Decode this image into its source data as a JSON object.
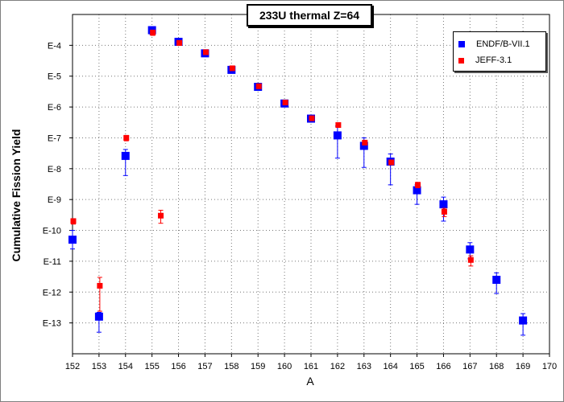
{
  "chart_data": {
    "type": "scatter",
    "title": "233U thermal Z=64",
    "xlabel": "A",
    "ylabel": "Cumulative Fission Yield",
    "xlim": [
      152,
      170
    ],
    "ylim": [
      1e-14,
      0.001
    ],
    "y_scale": "log",
    "grid": true,
    "legend_position": "top-right",
    "x_ticks": [
      "152",
      "153",
      "154",
      "155",
      "156",
      "157",
      "158",
      "159",
      "160",
      "161",
      "162",
      "163",
      "164",
      "165",
      "166",
      "167",
      "168",
      "169",
      "170"
    ],
    "y_ticks": [
      {
        "label": "E-4",
        "value": 0.0001
      },
      {
        "label": "E-5",
        "value": 1e-05
      },
      {
        "label": "E-6",
        "value": 1e-06
      },
      {
        "label": "E-7",
        "value": 1e-07
      },
      {
        "label": "E-8",
        "value": 1e-08
      },
      {
        "label": "E-9",
        "value": 1e-09
      },
      {
        "label": "E-10",
        "value": 1e-10
      },
      {
        "label": "E-11",
        "value": 1e-11
      },
      {
        "label": "E-12",
        "value": 1e-12
      },
      {
        "label": "E-13",
        "value": 1e-13
      }
    ],
    "series": [
      {
        "name": "ENDF/B-VII.1",
        "color": "#0000ff",
        "marker": "square",
        "points": [
          {
            "x": 152,
            "y": 5e-11,
            "lo": 2.5e-11,
            "hi": 1e-10
          },
          {
            "x": 153,
            "y": 1.6e-13,
            "lo": 5e-14,
            "hi": 2.2e-13
          },
          {
            "x": 154,
            "y": 2.6e-08,
            "lo": 6e-09,
            "hi": 4.2e-08
          },
          {
            "x": 155,
            "y": 0.00031,
            "lo": 0.00022,
            "hi": 0.00036
          },
          {
            "x": 156,
            "y": 0.00013,
            "lo": 0.00011,
            "hi": 0.00015
          },
          {
            "x": 157,
            "y": 5.5e-05,
            "lo": 4.5e-05,
            "hi": 6e-05
          },
          {
            "x": 158,
            "y": 1.6e-05,
            "lo": 1.3e-05,
            "hi": 1.8e-05
          },
          {
            "x": 159,
            "y": 4.5e-06,
            "lo": 4e-06,
            "hi": 5e-06
          },
          {
            "x": 160,
            "y": 1.3e-06,
            "lo": 1.1e-06,
            "hi": 1.5e-06
          },
          {
            "x": 161,
            "y": 4.2e-07,
            "lo": 3.8e-07,
            "hi": 4.6e-07
          },
          {
            "x": 162,
            "y": 1.2e-07,
            "lo": 2.2e-08,
            "hi": 2.4e-07
          },
          {
            "x": 163,
            "y": 5.5e-08,
            "lo": 1.1e-08,
            "hi": 1e-07
          },
          {
            "x": 164,
            "y": 1.7e-08,
            "lo": 3e-09,
            "hi": 3e-08
          },
          {
            "x": 165,
            "y": 2e-09,
            "lo": 7e-10,
            "hi": 3e-09
          },
          {
            "x": 166,
            "y": 7e-10,
            "lo": 2e-10,
            "hi": 1.2e-09
          },
          {
            "x": 167,
            "y": 2.4e-11,
            "lo": 1.2e-11,
            "hi": 4e-11
          },
          {
            "x": 168,
            "y": 2.5e-12,
            "lo": 9e-13,
            "hi": 4.2e-12
          },
          {
            "x": 169,
            "y": 1.2e-13,
            "lo": 4e-14,
            "hi": 2e-13
          }
        ]
      },
      {
        "name": "JEFF-3.1",
        "color": "#ff0000",
        "marker": "square",
        "points": [
          {
            "x": 152,
            "y": 2e-10,
            "lo": 1.6e-10,
            "hi": 2.4e-10
          },
          {
            "x": 153,
            "y": 1.6e-12,
            "lo": 2.4e-13,
            "hi": 3e-12
          },
          {
            "x": 154,
            "y": 1e-07,
            "lo": 8e-08,
            "hi": 1.2e-07
          },
          {
            "x": 155,
            "y": 0.00026,
            "lo": 0.00021,
            "hi": 0.00031
          },
          {
            "x": 156,
            "y": 0.00012,
            "lo": 0.0001,
            "hi": 0.00014
          },
          {
            "x": 157,
            "y": 6e-05,
            "lo": 5e-05,
            "hi": 6.8e-05
          },
          {
            "x": 158,
            "y": 1.8e-05,
            "lo": 1.6e-05,
            "hi": 2e-05
          },
          {
            "x": 159,
            "y": 4.7e-06,
            "lo": 4.3e-06,
            "hi": 5.1e-06
          },
          {
            "x": 160,
            "y": 1.4e-06,
            "lo": 1.2e-06,
            "hi": 1.6e-06
          },
          {
            "x": 161,
            "y": 4.3e-07,
            "lo": 3.9e-07,
            "hi": 4.7e-07
          },
          {
            "x": 162,
            "y": 2.6e-07,
            "lo": 2.4e-07,
            "hi": 2.8e-07
          },
          {
            "x": 163,
            "y": 7e-08,
            "lo": 6.3e-08,
            "hi": 7.7e-08
          },
          {
            "x": 164,
            "y": 1.6e-08,
            "lo": 1.4e-08,
            "hi": 1.8e-08
          },
          {
            "x": 165,
            "y": 3e-09,
            "lo": 2.4e-09,
            "hi": 3.6e-09
          },
          {
            "x": 166,
            "y": 4e-10,
            "lo": 2.8e-10,
            "hi": 5.2e-10
          },
          {
            "x": 167,
            "y": 1.1e-11,
            "lo": 7e-12,
            "hi": 1.5e-11
          }
        ]
      },
      {
        "name": "JEFF-3.1 (155)",
        "hidden_in_legend": true,
        "color": "#ff0000",
        "marker": "square",
        "points": [
          {
            "x": 155.3,
            "y": 3e-10,
            "lo": 1.7e-10,
            "hi": 4.5e-10
          }
        ]
      }
    ]
  }
}
